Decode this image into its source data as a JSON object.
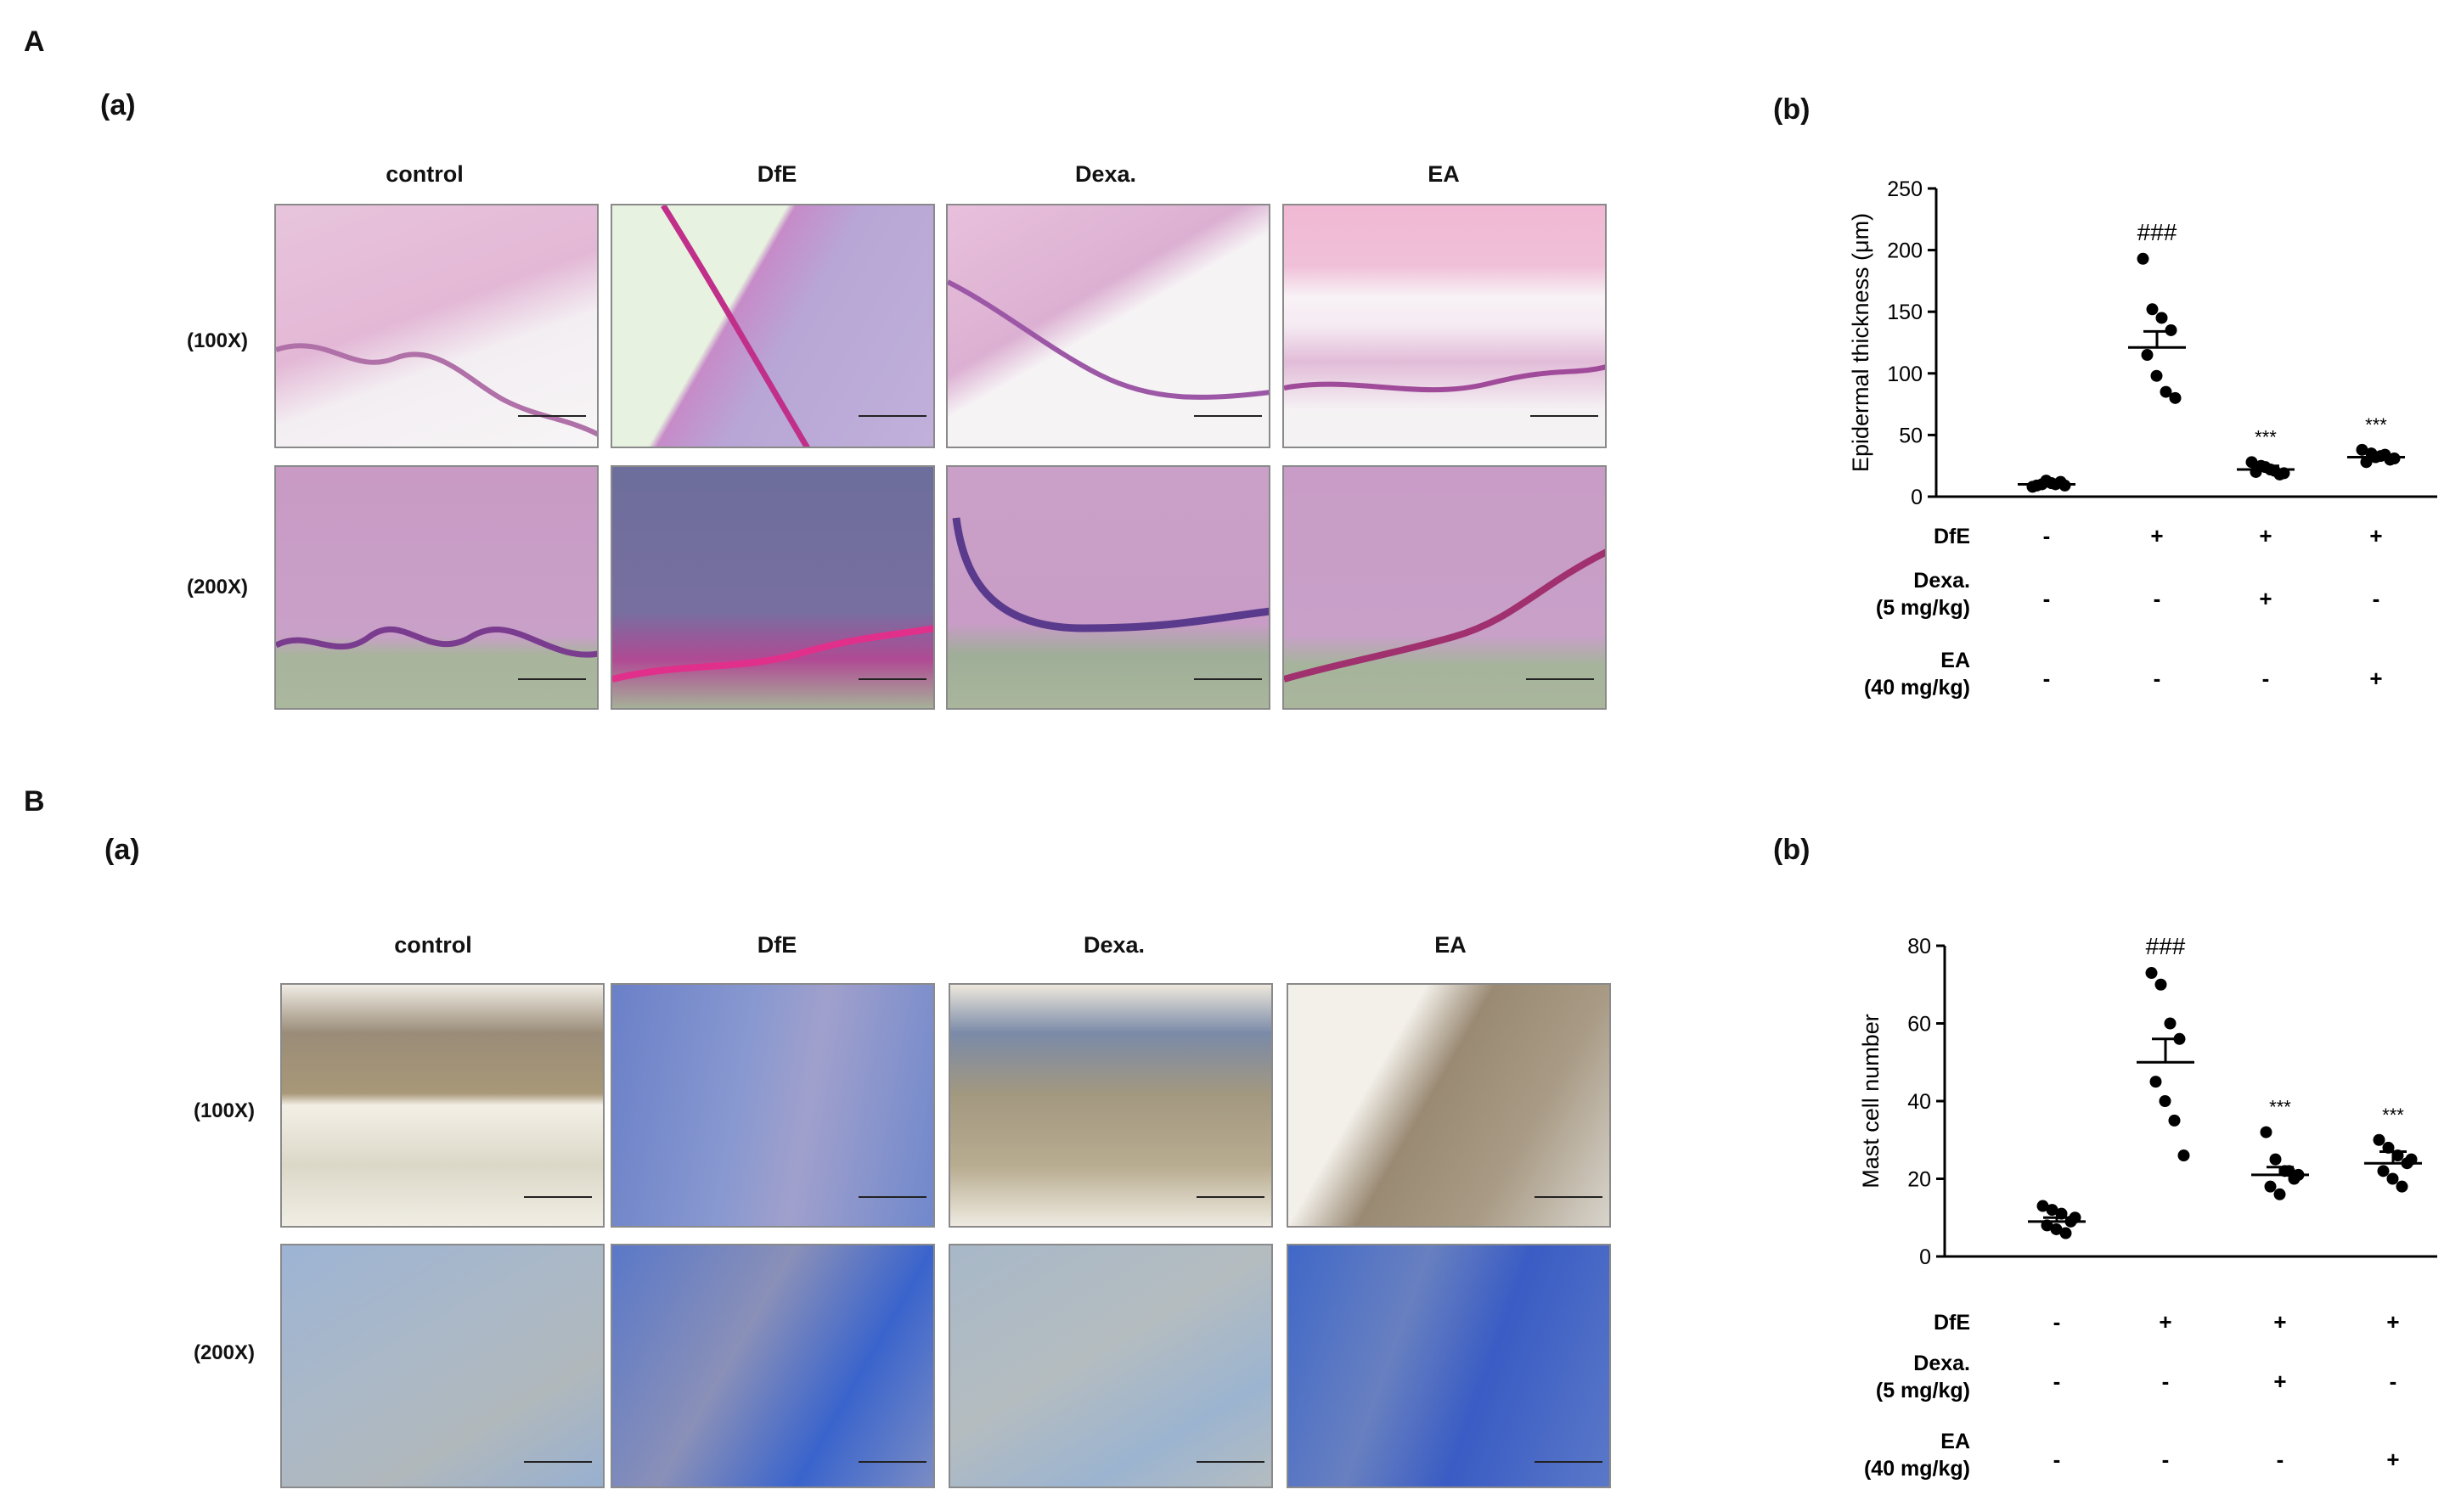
{
  "figure": {
    "panel_a_letter": "A",
    "panel_b_letter": "B",
    "a_sub_a": "(a)",
    "a_sub_b": "(b)",
    "b_sub_a": "(a)",
    "b_sub_b": "(b)",
    "groups": [
      "control",
      "DfE",
      "Dexa.",
      "EA"
    ],
    "mags": [
      "(100X)",
      "(200X)"
    ]
  },
  "chart_data": [
    {
      "type": "scatter",
      "ylabel": "Epidermal thickness (μm)",
      "ylim": [
        0,
        250
      ],
      "yticks": [
        0,
        50,
        100,
        150,
        200,
        250
      ],
      "significance": [
        "",
        "###",
        "***",
        "***"
      ],
      "series": [
        {
          "values": [
            8,
            10,
            11,
            12,
            9,
            13,
            10,
            9
          ]
        },
        {
          "values": [
            193,
            152,
            145,
            135,
            115,
            98,
            85,
            80
          ]
        },
        {
          "values": [
            28,
            25,
            22,
            18,
            20,
            24,
            21,
            19
          ]
        },
        {
          "values": [
            38,
            35,
            33,
            30,
            28,
            32,
            34,
            31
          ]
        }
      ],
      "means": [
        10,
        121,
        22,
        32
      ],
      "sem_upper": [
        12,
        134,
        25,
        35
      ],
      "treatments": [
        {
          "label": "DfE",
          "label2": "",
          "signs": [
            "-",
            "+",
            "+",
            "+"
          ]
        },
        {
          "label": "Dexa.",
          "label2": "(5 mg/kg)",
          "signs": [
            "-",
            "-",
            "+",
            "-"
          ]
        },
        {
          "label": "EA",
          "label2": "(40 mg/kg)",
          "signs": [
            "-",
            "-",
            "-",
            "+"
          ]
        }
      ]
    },
    {
      "type": "scatter",
      "ylabel": "Mast cell number",
      "ylim": [
        0,
        80
      ],
      "yticks": [
        0,
        20,
        40,
        60,
        80
      ],
      "significance": [
        "",
        "###",
        "***",
        "***"
      ],
      "series": [
        {
          "values": [
            13,
            12,
            11,
            9,
            8,
            7,
            6,
            10
          ]
        },
        {
          "values": [
            73,
            70,
            60,
            56,
            45,
            40,
            35,
            26
          ]
        },
        {
          "values": [
            32,
            25,
            22,
            20,
            18,
            16,
            22,
            21
          ]
        },
        {
          "values": [
            30,
            28,
            26,
            24,
            22,
            20,
            18,
            25
          ]
        }
      ],
      "means": [
        9,
        50,
        21,
        24
      ],
      "sem_upper": [
        10,
        56,
        23,
        27
      ],
      "treatments": [
        {
          "label": "DfE",
          "label2": "",
          "signs": [
            "-",
            "+",
            "+",
            "+"
          ]
        },
        {
          "label": "Dexa.",
          "label2": "(5 mg/kg)",
          "signs": [
            "-",
            "-",
            "+",
            "-"
          ]
        },
        {
          "label": "EA",
          "label2": "(40 mg/kg)",
          "signs": [
            "-",
            "-",
            "-",
            "+"
          ]
        }
      ]
    }
  ]
}
